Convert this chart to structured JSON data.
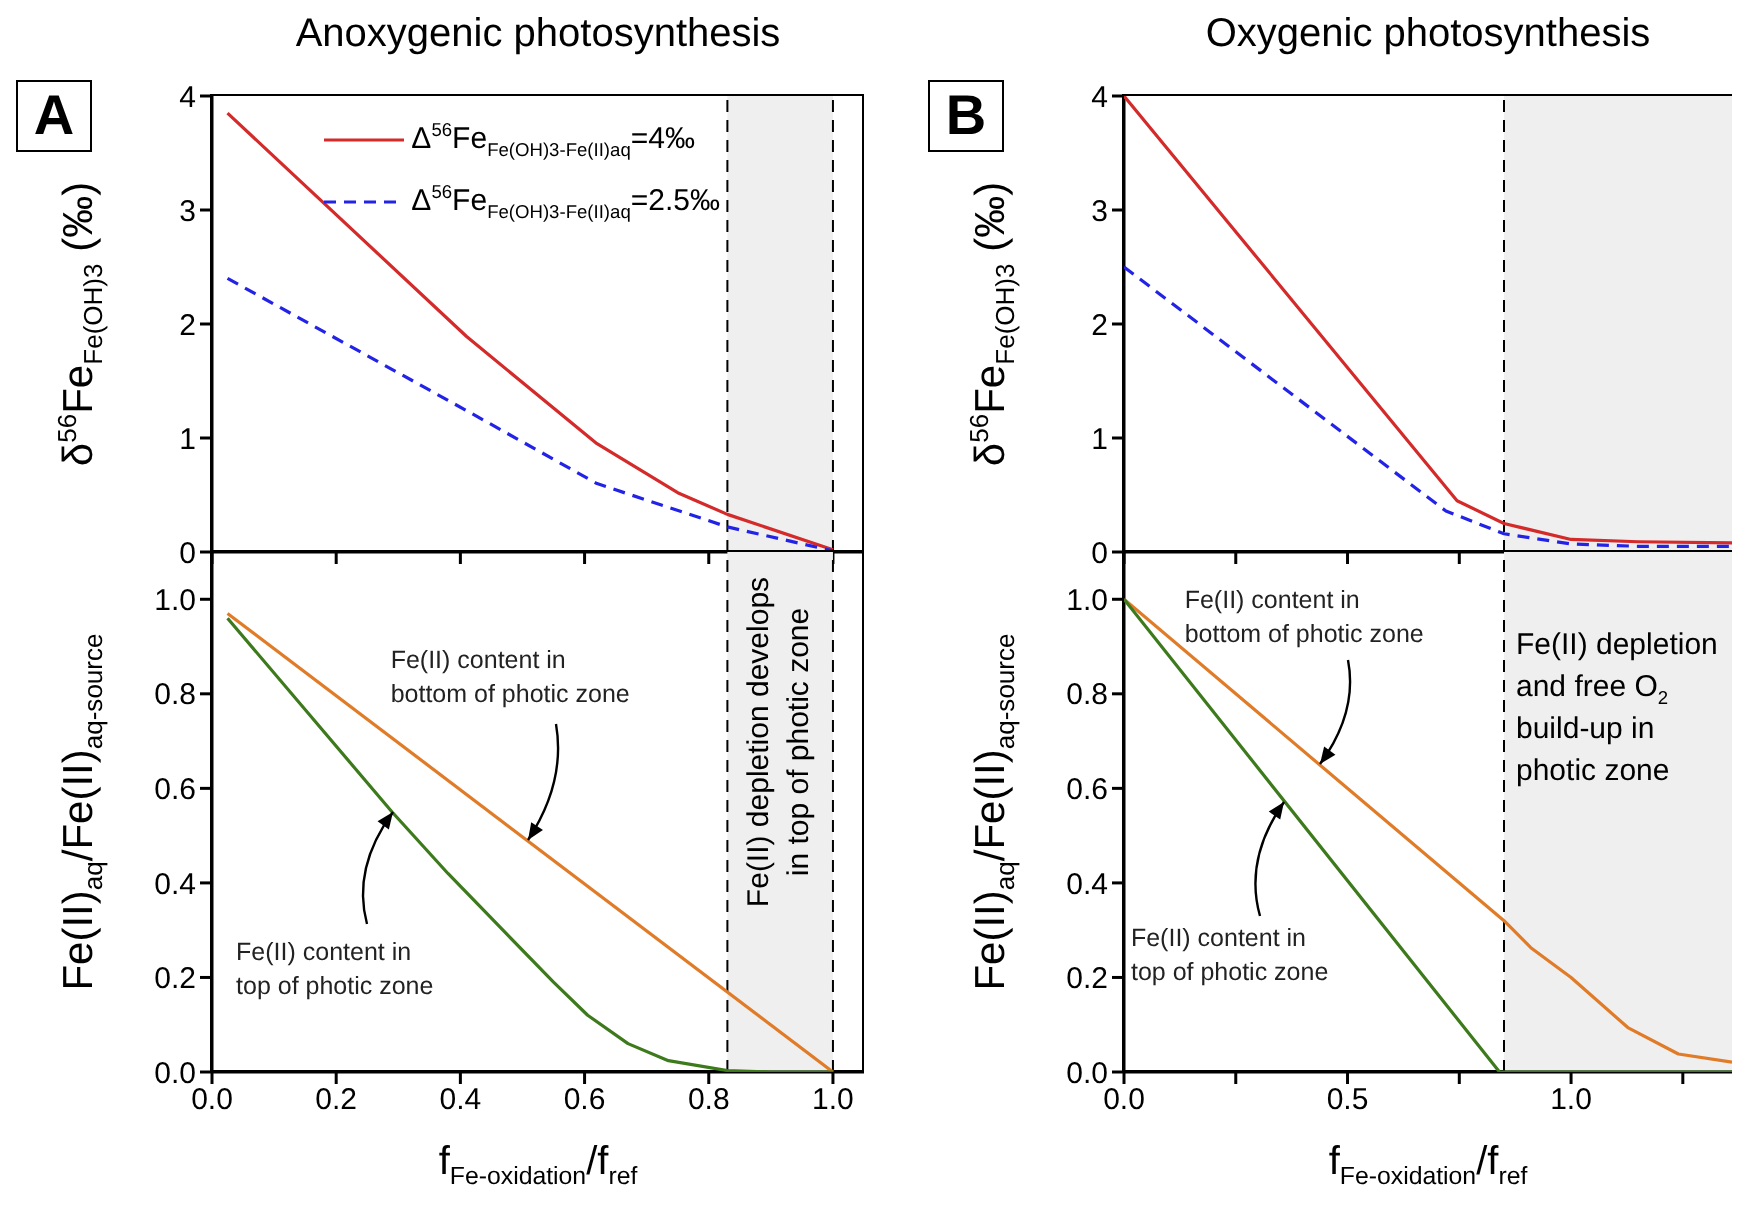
{
  "chart_data": [
    {
      "type": "line",
      "title": "Anoxygenic photosynthesis",
      "ylabel": "δ$^{56}$Fe$_{Fe(OH)3}$ (‰)",
      "annotations": [
        "A"
      ],
      "xlim": [
        0,
        1.05
      ],
      "xticks": [
        {
          "value": 0,
          "label": null
        },
        {
          "value": 0.2,
          "label": null
        },
        {
          "value": 0.4,
          "label": null
        },
        {
          "value": 0.6,
          "label": null
        },
        {
          "value": 0.8,
          "label": null
        },
        {
          "value": 1.0,
          "label": null
        }
      ],
      "ylim": [
        0,
        4
      ],
      "yticks": [
        0,
        1,
        2,
        3,
        4
      ],
      "tick_labels": "y",
      "legend": "top right",
      "bands": [
        {
          "axis": "x",
          "from": 0.83,
          "to": 1.0,
          "color": "#efefef"
        }
      ],
      "ref_lines": [
        {
          "axis": "x",
          "value": 0.83,
          "color": "#000000",
          "line_style": "dashed"
        },
        {
          "axis": "x",
          "value": 1.0,
          "color": "#000000",
          "line_style": "dashed"
        }
      ],
      "series": [
        {
          "name": "Δ$^{56}$Fe$_{Fe(OH)3-Fe(II)aq}$=4‰",
          "color": "#d42a2a",
          "x": [
            0.025,
            0.41,
            0.62,
            0.75,
            0.83,
            1.0
          ],
          "values": [
            3.85,
            1.89,
            0.95,
            0.52,
            0.33,
            0.02
          ]
        },
        {
          "name": "Δ$^{56}$Fe$_{Fe(OH)3-Fe(II)aq}$=2.5‰",
          "color": "#2323e8",
          "line_style": "dashed",
          "x": [
            0.025,
            0.41,
            0.62,
            0.83,
            1.0
          ],
          "values": [
            2.4,
            1.24,
            0.6,
            0.22,
            0.01
          ]
        }
      ]
    },
    {
      "type": "line",
      "title": "Oxygenic photosynthesis",
      "ylabel": "δ$^{56}$Fe$_{Fe(OH)3}$ (‰)",
      "annotations": [
        "B"
      ],
      "xlim": [
        0,
        1.36
      ],
      "xticks": [
        {
          "value": 0,
          "label": null
        },
        {
          "value": 0.25,
          "label": null
        },
        {
          "value": 0.5,
          "label": null
        },
        {
          "value": 0.75,
          "label": null
        },
        {
          "value": 1.0,
          "label": null
        },
        {
          "value": 1.25,
          "label": null
        }
      ],
      "ylim": [
        0,
        4
      ],
      "yticks": [
        0,
        1,
        2,
        3,
        4
      ],
      "tick_labels": "y",
      "bands": [
        {
          "axis": "x",
          "from": 0.85,
          "to": 1.36,
          "color": "#efefef"
        }
      ],
      "ref_lines": [
        {
          "axis": "x",
          "value": 0.85,
          "color": "#000000",
          "line_style": "dashed"
        }
      ],
      "series": [
        {
          "color": "#d42a2a",
          "x": [
            0,
            0.745,
            0.85,
            1.0,
            1.15,
            1.36
          ],
          "values": [
            4.0,
            0.45,
            0.25,
            0.11,
            0.09,
            0.08
          ]
        },
        {
          "color": "#2323e8",
          "line_style": "dashed",
          "x": [
            0,
            0.72,
            0.85,
            1.0,
            1.15,
            1.36
          ],
          "values": [
            2.5,
            0.36,
            0.16,
            0.07,
            0.05,
            0.05
          ]
        }
      ]
    },
    {
      "type": "line",
      "xlabel": "f$_{Fe-oxidation}$/f$_{ref}$",
      "ylabel": "Fe(II)$_{aq}$/Fe(II)$_{aq-source}$",
      "annotations": [
        {
          "text": "Fe(II) content in\nbottom of photic zone",
          "x": 0.51,
          "y": 0.49
        },
        {
          "text": "Fe(II) content in\ntop of photic zone",
          "x": 0.29,
          "y": 0.55
        }
      ],
      "xlim": [
        0,
        1.05
      ],
      "xticks": [
        {
          "value": 0,
          "label": "0.0"
        },
        {
          "value": 0.2,
          "label": "0.2"
        },
        {
          "value": 0.4,
          "label": "0.4"
        },
        {
          "value": 0.6,
          "label": "0.6"
        },
        {
          "value": 0.8,
          "label": "0.8"
        },
        {
          "value": 1.0,
          "label": "1.0"
        }
      ],
      "ylim": [
        0,
        1.1
      ],
      "yticks": [
        {
          "value": 0,
          "label": "0.0"
        },
        {
          "value": 0.2,
          "label": "0.2"
        },
        {
          "value": 0.4,
          "label": "0.4"
        },
        {
          "value": 0.6,
          "label": "0.6"
        },
        {
          "value": 0.8,
          "label": "0.8"
        },
        {
          "value": 1.0,
          "label": "1.0"
        }
      ],
      "bands": [
        {
          "axis": "x",
          "from": 0.83,
          "to": 1.0,
          "color": "#efefef",
          "label": "Fe(II) depletion develops\nin top of photic zone"
        }
      ],
      "ref_lines": [
        {
          "axis": "x",
          "value": 0.83,
          "color": "#000000",
          "line_style": "dashed"
        },
        {
          "axis": "x",
          "value": 1.0,
          "color": "#000000",
          "line_style": "dashed"
        }
      ],
      "series": [
        {
          "color": "#e07b28",
          "x": [
            0.025,
            1.0
          ],
          "values": [
            0.97,
            0.0
          ]
        },
        {
          "color": "#3d7a1c",
          "x": [
            0.025,
            0.29,
            0.38,
            0.476,
            0.55,
            0.605,
            0.67,
            0.735,
            0.83,
            0.9,
            1.0
          ],
          "values": [
            0.96,
            0.55,
            0.42,
            0.29,
            0.19,
            0.12,
            0.06,
            0.024,
            0.003,
            0,
            0
          ]
        }
      ]
    },
    {
      "type": "line",
      "xlabel": "f$_{Fe-oxidation}$/f$_{ref}$",
      "ylabel": "Fe(II)$_{aq}$/Fe(II)$_{aq-source}$",
      "annotations": [
        {
          "text": "Fe(II) content in\nbottom of photic zone",
          "x": 0.44,
          "y": 0.65
        },
        {
          "text": "Fe(II) content in\ntop of photic zone",
          "x": 0.36,
          "y": 0.57
        }
      ],
      "xlim": [
        0,
        1.36
      ],
      "xticks": [
        {
          "value": 0,
          "label": "0.0"
        },
        {
          "value": 0.25,
          "label": null
        },
        {
          "value": 0.5,
          "label": "0.5"
        },
        {
          "value": 0.75,
          "label": null
        },
        {
          "value": 1.0,
          "label": "1.0"
        },
        {
          "value": 1.25,
          "label": null
        }
      ],
      "ylim": [
        0,
        1.1
      ],
      "yticks": [
        {
          "value": 0,
          "label": "0.0"
        },
        {
          "value": 0.2,
          "label": "0.2"
        },
        {
          "value": 0.4,
          "label": "0.4"
        },
        {
          "value": 0.6,
          "label": "0.6"
        },
        {
          "value": 0.8,
          "label": "0.8"
        },
        {
          "value": 1.0,
          "label": "1.0"
        }
      ],
      "bands": [
        {
          "axis": "x",
          "from": 0.85,
          "to": 1.36,
          "color": "#efefef",
          "label": "Fe(II) depletion\nand free O$_{2}$\nbuild-up  in\nphotic zone"
        }
      ],
      "ref_lines": [
        {
          "axis": "x",
          "value": 0.85,
          "color": "#000000",
          "line_style": "dashed"
        }
      ],
      "series": [
        {
          "color": "#e07b28",
          "x": [
            0,
            0.85,
            0.91,
            1.0,
            1.127,
            1.24,
            1.36
          ],
          "values": [
            1.0,
            0.32,
            0.263,
            0.2,
            0.094,
            0.038,
            0.021
          ]
        },
        {
          "color": "#3d7a1c",
          "x": [
            0,
            0.84,
            1.36
          ],
          "values": [
            1.0,
            0,
            0
          ]
        }
      ]
    }
  ]
}
